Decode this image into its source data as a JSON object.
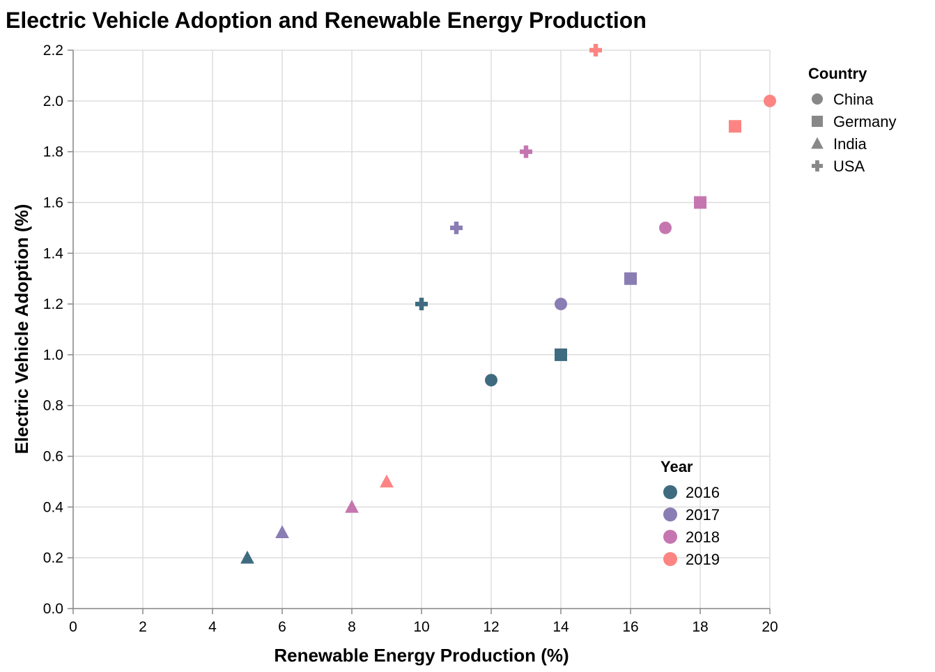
{
  "chart_data": {
    "type": "scatter",
    "title": "Electric Vehicle Adoption and Renewable Energy Production",
    "xlabel": "Renewable Energy Production (%)",
    "ylabel": "Electric Vehicle Adoption (%)",
    "xlim": [
      0,
      20
    ],
    "ylim": [
      0,
      2.2
    ],
    "x_ticks": [
      "0",
      "2",
      "4",
      "6",
      "8",
      "10",
      "12",
      "14",
      "16",
      "18",
      "20"
    ],
    "y_ticks": [
      "0.0",
      "0.2",
      "0.4",
      "0.6",
      "0.8",
      "1.0",
      "1.2",
      "1.4",
      "1.6",
      "1.8",
      "2.0",
      "2.2"
    ],
    "grid": true,
    "shape_legend": {
      "title": "Country",
      "placement": "top-right",
      "entries": [
        {
          "label": "China",
          "shape": "circle"
        },
        {
          "label": "Germany",
          "shape": "square"
        },
        {
          "label": "India",
          "shape": "triangle"
        },
        {
          "label": "USA",
          "shape": "cross"
        }
      ]
    },
    "color_legend": {
      "title": "Year",
      "placement": "bottom-right",
      "entries": [
        {
          "label": "2016",
          "color": "#3f6b80"
        },
        {
          "label": "2017",
          "color": "#8a7db3"
        },
        {
          "label": "2018",
          "color": "#c576b0"
        },
        {
          "label": "2019",
          "color": "#fc8583"
        }
      ]
    },
    "points": [
      {
        "country": "China",
        "year": "2016",
        "x": 12,
        "y": 0.9
      },
      {
        "country": "China",
        "year": "2017",
        "x": 14,
        "y": 1.2
      },
      {
        "country": "China",
        "year": "2018",
        "x": 17,
        "y": 1.5
      },
      {
        "country": "China",
        "year": "2019",
        "x": 20,
        "y": 2.0
      },
      {
        "country": "Germany",
        "year": "2016",
        "x": 14,
        "y": 1.0
      },
      {
        "country": "Germany",
        "year": "2017",
        "x": 16,
        "y": 1.3
      },
      {
        "country": "Germany",
        "year": "2018",
        "x": 18,
        "y": 1.6
      },
      {
        "country": "Germany",
        "year": "2019",
        "x": 19,
        "y": 1.9
      },
      {
        "country": "India",
        "year": "2016",
        "x": 5,
        "y": 0.2
      },
      {
        "country": "India",
        "year": "2017",
        "x": 6,
        "y": 0.3
      },
      {
        "country": "India",
        "year": "2018",
        "x": 8,
        "y": 0.4
      },
      {
        "country": "India",
        "year": "2019",
        "x": 9,
        "y": 0.5
      },
      {
        "country": "USA",
        "year": "2016",
        "x": 10,
        "y": 1.2
      },
      {
        "country": "USA",
        "year": "2017",
        "x": 11,
        "y": 1.5
      },
      {
        "country": "USA",
        "year": "2018",
        "x": 13,
        "y": 1.8
      },
      {
        "country": "USA",
        "year": "2019",
        "x": 15,
        "y": 2.2
      }
    ]
  }
}
